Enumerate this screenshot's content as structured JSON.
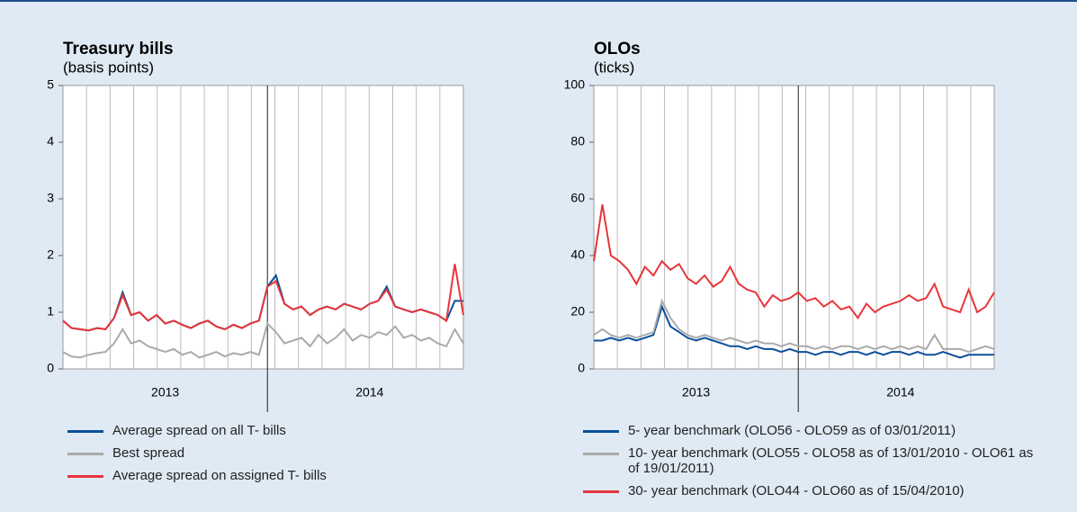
{
  "chart_data": [
    {
      "type": "line",
      "title": "Treasury bills",
      "subtitle": "(basis points)",
      "categories": [
        null,
        null,
        null,
        null,
        null,
        null,
        null,
        null,
        null,
        null,
        null,
        null,
        "2013",
        null,
        null,
        null,
        null,
        null,
        null,
        null,
        null,
        null,
        null,
        null,
        null,
        null,
        null,
        null,
        null,
        null,
        null,
        null,
        null,
        null,
        null,
        null,
        "2014",
        null,
        null,
        null,
        null,
        null,
        null,
        null,
        null,
        null,
        null,
        null
      ],
      "ylim": [
        0,
        5
      ],
      "yticks": [
        0,
        1,
        2,
        3,
        4,
        5
      ],
      "series": [
        {
          "name": "Average spread on all T- bills",
          "color": "#0b4f9c",
          "values": [
            0.85,
            0.72,
            0.7,
            0.68,
            0.72,
            0.7,
            0.9,
            1.35,
            0.95,
            1.0,
            0.85,
            0.95,
            0.8,
            0.85,
            0.78,
            0.72,
            0.8,
            0.85,
            0.75,
            0.7,
            0.78,
            0.72,
            0.8,
            0.85,
            1.45,
            1.65,
            1.15,
            1.05,
            1.1,
            0.95,
            1.05,
            1.1,
            1.05,
            1.15,
            1.1,
            1.05,
            1.15,
            1.2,
            1.45,
            1.1,
            1.05,
            1.0,
            1.05,
            1.0,
            0.95,
            0.85,
            1.2,
            1.2
          ]
        },
        {
          "name": "Best spread",
          "color": "#aaaaaa",
          "values": [
            0.3,
            0.22,
            0.2,
            0.25,
            0.28,
            0.3,
            0.45,
            0.7,
            0.45,
            0.5,
            0.4,
            0.35,
            0.3,
            0.35,
            0.25,
            0.3,
            0.2,
            0.25,
            0.3,
            0.22,
            0.28,
            0.25,
            0.3,
            0.25,
            0.8,
            0.65,
            0.45,
            0.5,
            0.55,
            0.4,
            0.6,
            0.45,
            0.55,
            0.7,
            0.5,
            0.6,
            0.55,
            0.65,
            0.6,
            0.75,
            0.55,
            0.6,
            0.5,
            0.55,
            0.45,
            0.4,
            0.7,
            0.45
          ]
        },
        {
          "name": "Average spread on assigned T- bills",
          "color": "#e8353a",
          "values": [
            0.85,
            0.72,
            0.7,
            0.68,
            0.72,
            0.7,
            0.9,
            1.3,
            0.95,
            1.0,
            0.85,
            0.95,
            0.8,
            0.85,
            0.78,
            0.72,
            0.8,
            0.85,
            0.75,
            0.7,
            0.78,
            0.72,
            0.8,
            0.85,
            1.45,
            1.55,
            1.15,
            1.05,
            1.1,
            0.95,
            1.05,
            1.1,
            1.05,
            1.15,
            1.1,
            1.05,
            1.15,
            1.2,
            1.4,
            1.1,
            1.05,
            1.0,
            1.05,
            1.0,
            0.95,
            0.85,
            1.85,
            0.95
          ]
        }
      ]
    },
    {
      "type": "line",
      "title": "OLOs",
      "subtitle": "(ticks)",
      "categories": [
        null,
        null,
        null,
        null,
        null,
        null,
        null,
        null,
        null,
        null,
        null,
        null,
        "2013",
        null,
        null,
        null,
        null,
        null,
        null,
        null,
        null,
        null,
        null,
        null,
        null,
        null,
        null,
        null,
        null,
        null,
        null,
        null,
        null,
        null,
        null,
        null,
        "2014",
        null,
        null,
        null,
        null,
        null,
        null,
        null,
        null,
        null,
        null,
        null
      ],
      "ylim": [
        0,
        100
      ],
      "yticks": [
        0,
        20,
        40,
        60,
        80,
        100
      ],
      "series": [
        {
          "name": "5- year benchmark (OLO56 - OLO59 as of 03/01/2011)",
          "color": "#0b4f9c",
          "values": [
            10,
            10,
            11,
            10,
            11,
            10,
            11,
            12,
            22,
            15,
            13,
            11,
            10,
            11,
            10,
            9,
            8,
            8,
            7,
            8,
            7,
            7,
            6,
            7,
            6,
            6,
            5,
            6,
            6,
            5,
            6,
            6,
            5,
            6,
            5,
            6,
            6,
            5,
            6,
            5,
            5,
            6,
            5,
            4,
            5,
            5,
            5,
            5
          ]
        },
        {
          "name": "10- year benchmark (OLO55 - OLO58 as of 13/01/2010 - OLO61 as of 19/01/2011)",
          "color": "#aaaaaa",
          "values": [
            12,
            14,
            12,
            11,
            12,
            11,
            12,
            13,
            24,
            18,
            14,
            12,
            11,
            12,
            11,
            10,
            11,
            10,
            9,
            10,
            9,
            9,
            8,
            9,
            8,
            8,
            7,
            8,
            7,
            8,
            8,
            7,
            8,
            7,
            8,
            7,
            8,
            7,
            8,
            7,
            12,
            7,
            7,
            7,
            6,
            7,
            8,
            7
          ]
        },
        {
          "name": "30- year benchmark (OLO44 - OLO60 as of 15/04/2010)",
          "color": "#e8353a",
          "values": [
            38,
            58,
            40,
            38,
            35,
            30,
            36,
            33,
            38,
            35,
            37,
            32,
            30,
            33,
            29,
            31,
            36,
            30,
            28,
            27,
            22,
            26,
            24,
            25,
            27,
            24,
            25,
            22,
            24,
            21,
            22,
            18,
            23,
            20,
            22,
            23,
            24,
            26,
            24,
            25,
            30,
            22,
            21,
            20,
            28,
            20,
            22,
            27
          ]
        }
      ]
    }
  ]
}
